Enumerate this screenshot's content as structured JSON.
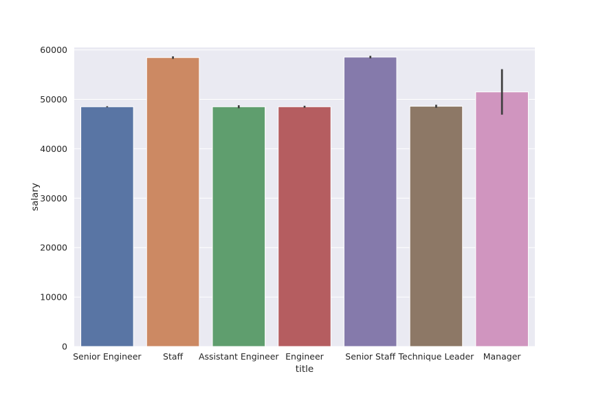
{
  "chart_data": {
    "type": "bar",
    "xlabel": "title",
    "ylabel": "salary",
    "categories": [
      "Senior Engineer",
      "Staff",
      "Assistant Engineer",
      "Engineer",
      "Senior Staff",
      "Technique Leader",
      "Manager"
    ],
    "values": [
      48500,
      58450,
      48500,
      48500,
      58550,
      48600,
      51500
    ],
    "error_bars": [
      [
        48400,
        48600
      ],
      [
        58200,
        58700
      ],
      [
        48200,
        48800
      ],
      [
        48300,
        48700
      ],
      [
        58300,
        58800
      ],
      [
        48300,
        48900
      ],
      [
        46900,
        56100
      ]
    ],
    "colors": [
      "#5975a4",
      "#cc8963",
      "#5f9e6e",
      "#b55d60",
      "#857aab",
      "#8d7866",
      "#d095bf"
    ],
    "ylim": [
      0,
      60500
    ],
    "yticks": [
      0,
      10000,
      20000,
      30000,
      40000,
      50000,
      60000
    ],
    "grid": true,
    "legend": "none"
  }
}
